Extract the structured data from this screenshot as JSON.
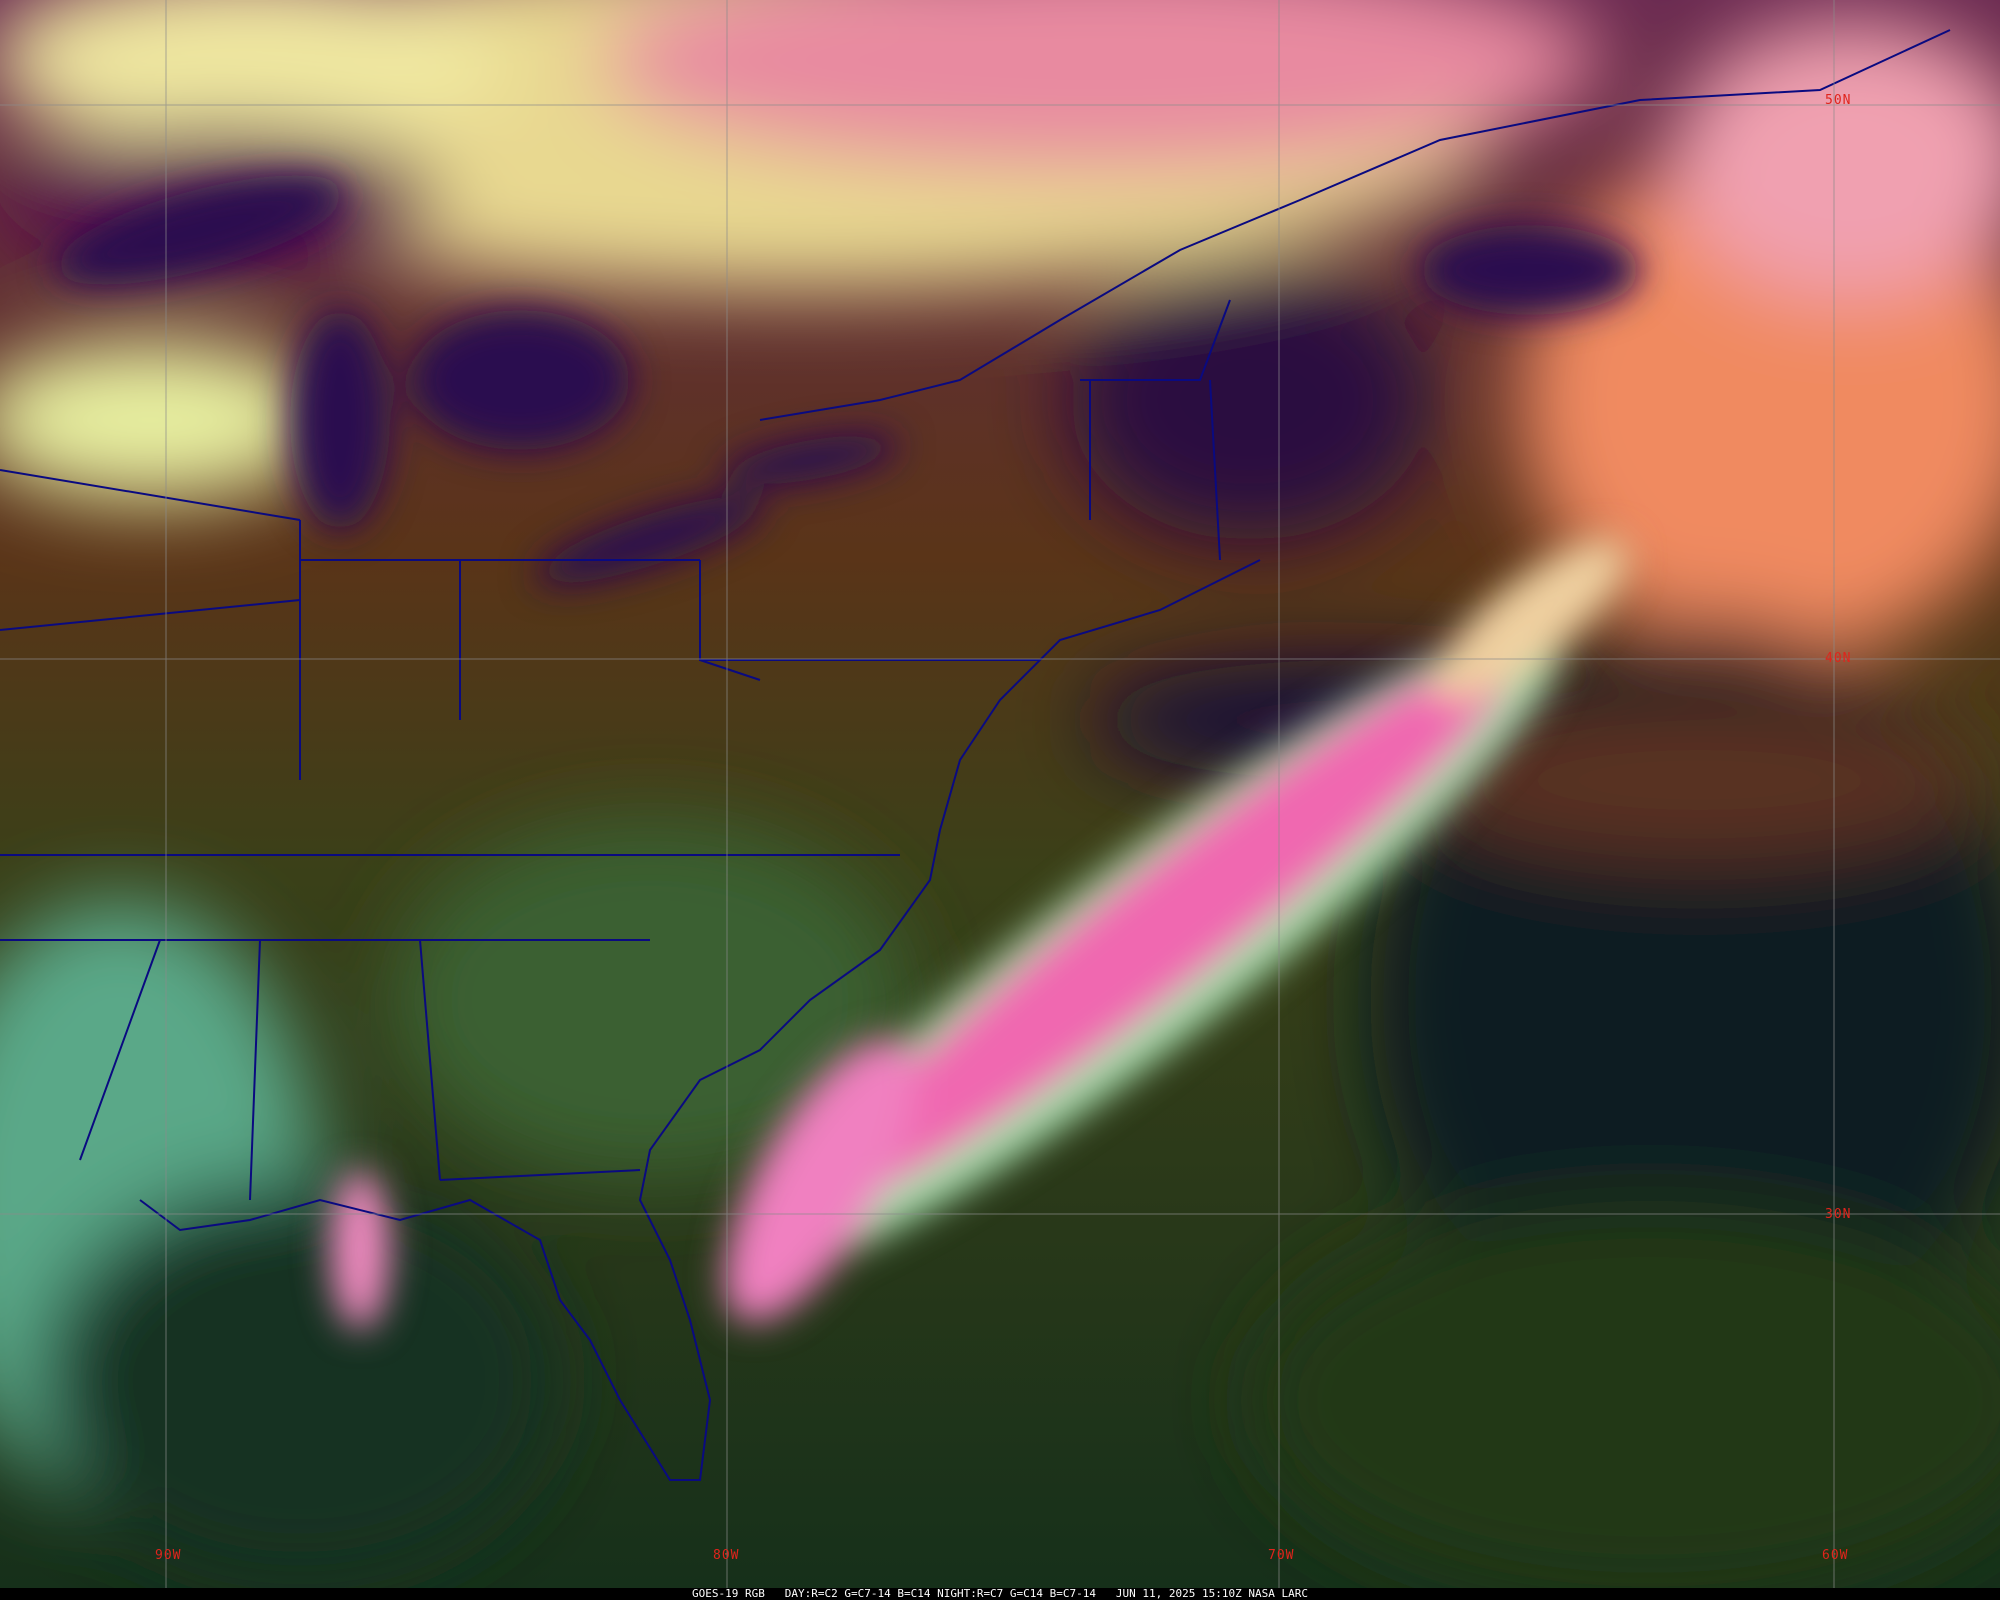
{
  "caption": "GOES-19 RGB   DAY:R=C2 G=C7-14 B=C14 NIGHT:R=C7 G=C14 B=C7-14   JUN 11, 2025 15:10Z NASA LARC",
  "grid": {
    "longitudes": [
      "90W",
      "80W",
      "70W",
      "60W"
    ],
    "latitudes": [
      "50N",
      "40N",
      "30N"
    ]
  },
  "colors": {
    "grid_label": "#e0241c",
    "borders": "#0a0a80",
    "grid_line": "#8a8a8a",
    "ocean": "#1a1030",
    "cloud_pink": "#f060a8",
    "cloud_yellow": "#f0f0a0"
  }
}
